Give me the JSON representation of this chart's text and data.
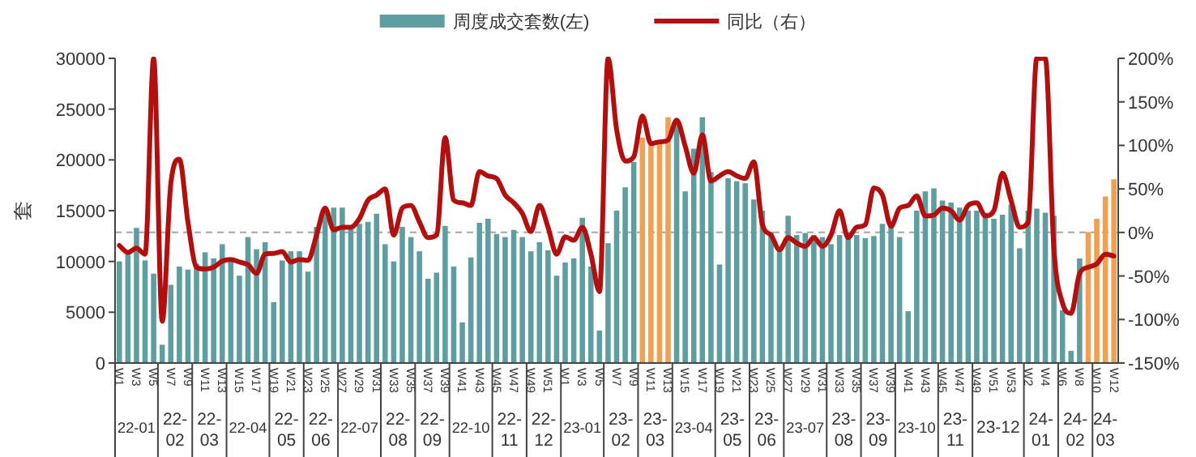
{
  "chart_data": {
    "type": "bar",
    "legend": "top",
    "marker": "none",
    "ylabel": "套",
    "categories": [
      "W1",
      null,
      "W3",
      null,
      "W5",
      null,
      "W7",
      null,
      "W9",
      null,
      "W11",
      null,
      "W13",
      null,
      "W15",
      null,
      "W17",
      null,
      "W19",
      null,
      "W21",
      null,
      "W23",
      null,
      "W25",
      null,
      "W27",
      null,
      "W29",
      null,
      "W31",
      null,
      "W33",
      null,
      "W35",
      null,
      "W37",
      null,
      "W39",
      null,
      "W41",
      null,
      "W43",
      null,
      "W45",
      null,
      "W47",
      null,
      "W49",
      null,
      "W51",
      null,
      "W1",
      null,
      "W3",
      null,
      "W5",
      null,
      "W7",
      null,
      "W9",
      null,
      "W11",
      null,
      "W13",
      null,
      "W15",
      null,
      "W17",
      null,
      "W19",
      null,
      "W21",
      null,
      "W23",
      null,
      "W25",
      null,
      "W27",
      null,
      "W29",
      null,
      "W31",
      null,
      "W33",
      null,
      "W35",
      null,
      "W37",
      null,
      "W39",
      null,
      "W41",
      null,
      "W43",
      null,
      "W45",
      null,
      "W47",
      null,
      "W49",
      null,
      "W51",
      null,
      "W53",
      null,
      "W2",
      null,
      "W4",
      null,
      "W6",
      null,
      "W8",
      null,
      "W10",
      null,
      "W12"
    ],
    "series": [
      {
        "name": "周度成交套数(左)",
        "color": "#5f9ea0",
        "colors": [
          "#5f9ea0",
          "#5f9ea0",
          "#5f9ea0",
          "#5f9ea0",
          "#5f9ea0",
          "#5f9ea0",
          "#5f9ea0",
          "#5f9ea0",
          "#5f9ea0",
          "#5f9ea0",
          "#5f9ea0",
          "#5f9ea0",
          "#5f9ea0",
          "#5f9ea0",
          "#5f9ea0",
          "#5f9ea0",
          "#5f9ea0",
          "#5f9ea0",
          "#5f9ea0",
          "#5f9ea0",
          "#5f9ea0",
          "#5f9ea0",
          "#5f9ea0",
          "#5f9ea0",
          "#5f9ea0",
          "#5f9ea0",
          "#5f9ea0",
          "#5f9ea0",
          "#5f9ea0",
          "#5f9ea0",
          "#5f9ea0",
          "#5f9ea0",
          "#5f9ea0",
          "#5f9ea0",
          "#5f9ea0",
          "#5f9ea0",
          "#5f9ea0",
          "#5f9ea0",
          "#5f9ea0",
          "#5f9ea0",
          "#5f9ea0",
          "#5f9ea0",
          "#5f9ea0",
          "#5f9ea0",
          "#5f9ea0",
          "#5f9ea0",
          "#5f9ea0",
          "#5f9ea0",
          "#5f9ea0",
          "#5f9ea0",
          "#5f9ea0",
          "#5f9ea0",
          "#5f9ea0",
          "#5f9ea0",
          "#5f9ea0",
          "#5f9ea0",
          "#5f9ea0",
          "#5f9ea0",
          "#5f9ea0",
          "#5f9ea0",
          "#5f9ea0",
          "#f0a050",
          "#f0a050",
          "#f0a050",
          "#f0a050",
          "#5f9ea0",
          "#5f9ea0",
          "#5f9ea0",
          "#5f9ea0",
          "#5f9ea0",
          "#5f9ea0",
          "#5f9ea0",
          "#5f9ea0",
          "#5f9ea0",
          "#5f9ea0",
          "#5f9ea0",
          "#5f9ea0",
          "#5f9ea0",
          "#5f9ea0",
          "#5f9ea0",
          "#5f9ea0",
          "#5f9ea0",
          "#5f9ea0",
          "#5f9ea0",
          "#5f9ea0",
          "#5f9ea0",
          "#5f9ea0",
          "#5f9ea0",
          "#5f9ea0",
          "#5f9ea0",
          "#5f9ea0",
          "#5f9ea0",
          "#5f9ea0",
          "#5f9ea0",
          "#5f9ea0",
          "#5f9ea0",
          "#5f9ea0",
          "#5f9ea0",
          "#5f9ea0",
          "#5f9ea0",
          "#5f9ea0",
          "#5f9ea0",
          "#5f9ea0",
          "#5f9ea0",
          "#5f9ea0",
          "#5f9ea0",
          "#5f9ea0",
          "#5f9ea0",
          "#5f9ea0",
          "#5f9ea0",
          "#5f9ea0",
          "#5f9ea0",
          "#5f9ea0",
          "#f0a050",
          "#f0a050",
          "#f0a050",
          "#f0a050"
        ],
        "values": [
          10000,
          10800,
          13300,
          10100,
          8800,
          1800,
          7700,
          9500,
          9200,
          9800,
          10900,
          10300,
          11700,
          10100,
          8600,
          12400,
          11200,
          11900,
          6000,
          10100,
          11000,
          11000,
          9000,
          13400,
          15200,
          15300,
          15300,
          13400,
          13700,
          13900,
          14700,
          11700,
          10000,
          13400,
          12400,
          11000,
          8300,
          8900,
          13500,
          9500,
          4000,
          10400,
          13800,
          14200,
          12700,
          12400,
          13100,
          12400,
          11000,
          11900,
          11100,
          8600,
          9900,
          10300,
          14300,
          9500,
          3200,
          11800,
          15000,
          17300,
          19800,
          22200,
          21500,
          21700,
          24200,
          23500,
          16900,
          21100,
          24200,
          18800,
          9700,
          18200,
          17900,
          17700,
          16100,
          15000,
          12900,
          11000,
          14500,
          12600,
          12800,
          12600,
          12400,
          11700,
          12600,
          12900,
          12600,
          12300,
          12500,
          13700,
          13400,
          12400,
          5100,
          15000,
          16900,
          17200,
          16000,
          15800,
          15300,
          15000,
          15000,
          14800,
          14200,
          14600,
          15600,
          11300,
          15000,
          15200,
          14800,
          14500,
          5200,
          1200,
          10300,
          12900,
          14200,
          16400,
          18100
        ]
      },
      {
        "name": "同比（右）",
        "type": "line",
        "axis": "y2",
        "color": "#b40f0f",
        "line_style": "solid",
        "values": [
          -15,
          -23,
          -18,
          -25,
          200,
          -102,
          56,
          84,
          12,
          -40,
          -42,
          -40,
          -33,
          -31,
          -34,
          -37,
          -47,
          -25,
          -24,
          -22,
          -34,
          -31,
          -32,
          -3,
          28,
          3,
          6,
          6,
          16,
          37,
          43,
          50,
          -3,
          28,
          31,
          12,
          -6,
          -3,
          109,
          37,
          34,
          31,
          70,
          65,
          62,
          43,
          34,
          22,
          1,
          31,
          6,
          -25,
          -5,
          -9,
          6,
          -25,
          -68,
          200,
          118,
          82,
          87,
          134,
          102,
          104,
          106,
          129,
          99,
          68,
          112,
          59,
          65,
          70,
          65,
          62,
          81,
          9,
          -3,
          -20,
          -6,
          -12,
          -16,
          -6,
          -16,
          -3,
          25,
          -6,
          6,
          9,
          51,
          43,
          7,
          28,
          31,
          42,
          19,
          20,
          28,
          25,
          14,
          31,
          34,
          19,
          25,
          68,
          37,
          6,
          12,
          200,
          200,
          -19,
          -81,
          -93,
          -47,
          -40,
          -36,
          -25,
          -27
        ]
      }
    ],
    "ylim": [
      0,
      30000
    ],
    "yticks": [
      0,
      5000,
      10000,
      15000,
      20000,
      25000,
      30000
    ],
    "y2lim": [
      -150,
      200
    ],
    "y2ticks": [
      {
        "value": -150,
        "label": "-150%"
      },
      {
        "value": -100,
        "label": "-100%"
      },
      {
        "value": -50,
        "label": "-50%"
      },
      {
        "value": 0,
        "label": "0%"
      },
      {
        "value": 50,
        "label": "50%"
      },
      {
        "value": 100,
        "label": "100%"
      },
      {
        "value": 150,
        "label": "150%"
      },
      {
        "value": 200,
        "label": "200%"
      }
    ],
    "ref_lines": [
      {
        "axis": "y2",
        "value": 0,
        "color": "#a6a6a6",
        "line_style": "dashed"
      }
    ],
    "annotations": [
      "22-01",
      "22-02",
      "22-03",
      "22-04",
      "22-05",
      "22-06",
      "22-07",
      "22-08",
      "22-09",
      "22-10",
      "22-11",
      "22-12",
      "23-01",
      "23-02",
      "23-03",
      "23-04",
      "23-05",
      "23-06",
      "23-07",
      "23-08",
      "23-09",
      "23-10",
      "23-11",
      "23-12",
      "24-01",
      "24-02",
      "24-03"
    ]
  }
}
